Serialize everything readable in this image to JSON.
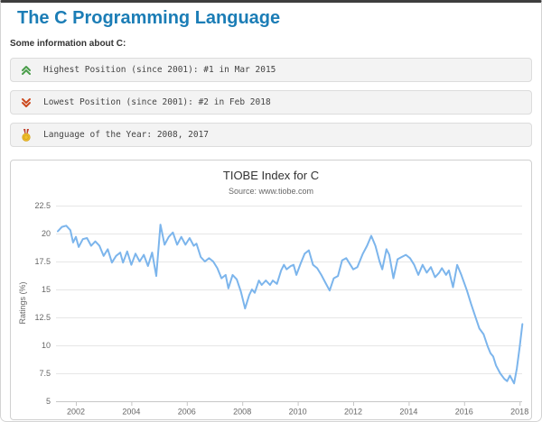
{
  "page": {
    "title": "The C Programming Language",
    "section_label": "Some information about C:"
  },
  "info_rows": [
    {
      "icon": "chevrons-up-icon",
      "icon_color": "#4a9e4a",
      "text": "Highest Position (since 2001): #1 in Mar 2015"
    },
    {
      "icon": "chevrons-down-icon",
      "icon_color": "#cc4a1f",
      "text": "Lowest Position (since 2001): #2 in Feb 2018"
    },
    {
      "icon": "medal-icon",
      "icon_color": "#f0c02f",
      "text": "Language of the Year: 2008, 2017"
    }
  ],
  "chart_data": {
    "type": "line",
    "title": "TIOBE Index for C",
    "subtitle": "Source: www.tiobe.com",
    "xlabel": "",
    "ylabel": "Ratings (%)",
    "legend": false,
    "grid": true,
    "line_color": "#7cb5ec",
    "grid_color": "#e6e6e6",
    "axis_color": "#c6c6c6",
    "tick_label_color": "#666666",
    "xlim": [
      2001.2,
      2018.35
    ],
    "ylim": [
      5,
      22.5
    ],
    "x_ticks": [
      2002,
      2004,
      2006,
      2008,
      2010,
      2012,
      2014,
      2016,
      2018
    ],
    "y_ticks": [
      5,
      7.5,
      10,
      12.5,
      15,
      17.5,
      20,
      22.5
    ],
    "series": [
      {
        "name": "C",
        "points": [
          [
            2001.35,
            20.2
          ],
          [
            2001.5,
            20.6
          ],
          [
            2001.65,
            20.7
          ],
          [
            2001.8,
            20.3
          ],
          [
            2001.9,
            19.2
          ],
          [
            2002.0,
            19.7
          ],
          [
            2002.1,
            18.8
          ],
          [
            2002.25,
            19.5
          ],
          [
            2002.4,
            19.6
          ],
          [
            2002.55,
            18.9
          ],
          [
            2002.7,
            19.3
          ],
          [
            2002.85,
            18.9
          ],
          [
            2003.0,
            18.0
          ],
          [
            2003.15,
            18.6
          ],
          [
            2003.3,
            17.4
          ],
          [
            2003.45,
            18.0
          ],
          [
            2003.6,
            18.3
          ],
          [
            2003.7,
            17.4
          ],
          [
            2003.85,
            18.4
          ],
          [
            2004.0,
            17.2
          ],
          [
            2004.15,
            18.2
          ],
          [
            2004.3,
            17.5
          ],
          [
            2004.45,
            18.1
          ],
          [
            2004.6,
            17.1
          ],
          [
            2004.75,
            18.3
          ],
          [
            2004.9,
            16.2
          ],
          [
            2005.05,
            20.8
          ],
          [
            2005.2,
            19.0
          ],
          [
            2005.35,
            19.7
          ],
          [
            2005.5,
            20.1
          ],
          [
            2005.65,
            19.0
          ],
          [
            2005.8,
            19.7
          ],
          [
            2005.95,
            19.0
          ],
          [
            2006.1,
            19.6
          ],
          [
            2006.25,
            18.9
          ],
          [
            2006.35,
            19.1
          ],
          [
            2006.5,
            17.9
          ],
          [
            2006.65,
            17.5
          ],
          [
            2006.8,
            17.8
          ],
          [
            2006.95,
            17.5
          ],
          [
            2007.1,
            16.9
          ],
          [
            2007.25,
            16.0
          ],
          [
            2007.4,
            16.3
          ],
          [
            2007.5,
            15.1
          ],
          [
            2007.65,
            16.3
          ],
          [
            2007.8,
            15.9
          ],
          [
            2007.95,
            14.8
          ],
          [
            2008.1,
            13.3
          ],
          [
            2008.25,
            14.5
          ],
          [
            2008.35,
            15.0
          ],
          [
            2008.45,
            14.7
          ],
          [
            2008.6,
            15.8
          ],
          [
            2008.7,
            15.4
          ],
          [
            2008.85,
            15.8
          ],
          [
            2009.0,
            15.4
          ],
          [
            2009.1,
            15.8
          ],
          [
            2009.25,
            15.5
          ],
          [
            2009.4,
            16.7
          ],
          [
            2009.5,
            17.2
          ],
          [
            2009.6,
            16.8
          ],
          [
            2009.75,
            17.1
          ],
          [
            2009.85,
            17.2
          ],
          [
            2009.95,
            16.3
          ],
          [
            2010.1,
            17.3
          ],
          [
            2010.25,
            18.2
          ],
          [
            2010.4,
            18.5
          ],
          [
            2010.55,
            17.2
          ],
          [
            2010.7,
            16.9
          ],
          [
            2010.85,
            16.3
          ],
          [
            2011.0,
            15.6
          ],
          [
            2011.15,
            14.9
          ],
          [
            2011.3,
            16.0
          ],
          [
            2011.45,
            16.2
          ],
          [
            2011.6,
            17.6
          ],
          [
            2011.75,
            17.8
          ],
          [
            2011.9,
            17.2
          ],
          [
            2012.0,
            16.8
          ],
          [
            2012.15,
            17.0
          ],
          [
            2012.35,
            18.2
          ],
          [
            2012.5,
            18.9
          ],
          [
            2012.65,
            19.8
          ],
          [
            2012.8,
            18.9
          ],
          [
            2012.95,
            17.5
          ],
          [
            2013.05,
            16.8
          ],
          [
            2013.2,
            18.6
          ],
          [
            2013.3,
            18.1
          ],
          [
            2013.45,
            16.0
          ],
          [
            2013.6,
            17.7
          ],
          [
            2013.75,
            17.9
          ],
          [
            2013.9,
            18.1
          ],
          [
            2014.05,
            17.8
          ],
          [
            2014.2,
            17.2
          ],
          [
            2014.35,
            16.3
          ],
          [
            2014.5,
            17.2
          ],
          [
            2014.65,
            16.5
          ],
          [
            2014.8,
            17.0
          ],
          [
            2014.95,
            16.1
          ],
          [
            2015.1,
            16.5
          ],
          [
            2015.2,
            16.9
          ],
          [
            2015.35,
            16.3
          ],
          [
            2015.45,
            16.7
          ],
          [
            2015.6,
            15.2
          ],
          [
            2015.75,
            17.2
          ],
          [
            2015.9,
            16.3
          ],
          [
            2016.0,
            15.6
          ],
          [
            2016.1,
            14.9
          ],
          [
            2016.25,
            13.7
          ],
          [
            2016.4,
            12.6
          ],
          [
            2016.55,
            11.5
          ],
          [
            2016.7,
            11.0
          ],
          [
            2016.85,
            9.9
          ],
          [
            2016.95,
            9.3
          ],
          [
            2017.05,
            9.0
          ],
          [
            2017.15,
            8.2
          ],
          [
            2017.3,
            7.5
          ],
          [
            2017.45,
            7.0
          ],
          [
            2017.55,
            6.8
          ],
          [
            2017.65,
            7.3
          ],
          [
            2017.8,
            6.6
          ],
          [
            2017.9,
            7.9
          ],
          [
            2018.0,
            9.8
          ],
          [
            2018.1,
            11.9
          ]
        ]
      }
    ]
  }
}
